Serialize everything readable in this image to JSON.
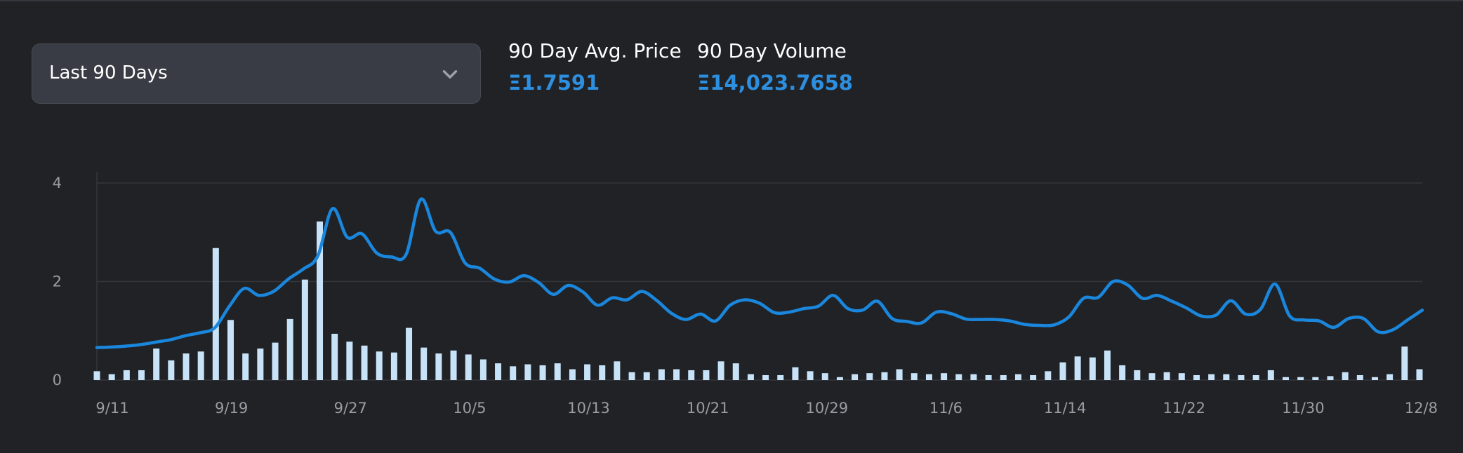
{
  "filter": {
    "selected": "Last 90 Days"
  },
  "stats": [
    {
      "label": "90 Day Avg. Price",
      "value": "Ξ1.7591"
    },
    {
      "label": "90 Day Volume",
      "value": "Ξ14,023.7658"
    }
  ],
  "colors": {
    "price_line": "#1a86dc",
    "volume_bar": "#c8e3f7",
    "accent_text": "#2d8fe0",
    "gridline": "#34363b"
  },
  "icons": {
    "dropdown": "chevron-down-icon"
  },
  "chart_data": {
    "type": "line",
    "x_tick_labels": [
      "9/11",
      "9/19",
      "9/27",
      "10/5",
      "10/13",
      "10/21",
      "10/29",
      "11/6",
      "11/14",
      "11/22",
      "11/30",
      "12/8"
    ],
    "y_tick_labels": [
      "0",
      "2",
      "4"
    ],
    "ylim": [
      0,
      4
    ],
    "grid": true,
    "series": [
      {
        "type": "line",
        "values": [
          0.66,
          0.67,
          0.69,
          0.72,
          0.77,
          0.82,
          0.9,
          0.96,
          1.06,
          1.5,
          1.86,
          1.72,
          1.8,
          2.05,
          2.25,
          2.52,
          3.48,
          2.9,
          2.97,
          2.58,
          2.5,
          2.55,
          3.67,
          3.02,
          3.0,
          2.38,
          2.27,
          2.05,
          1.99,
          2.12,
          1.98,
          1.74,
          1.92,
          1.79,
          1.52,
          1.67,
          1.63,
          1.8,
          1.62,
          1.36,
          1.23,
          1.34,
          1.2,
          1.52,
          1.63,
          1.56,
          1.37,
          1.38,
          1.45,
          1.5,
          1.72,
          1.45,
          1.42,
          1.6,
          1.25,
          1.19,
          1.16,
          1.38,
          1.35,
          1.24,
          1.23,
          1.23,
          1.2,
          1.13,
          1.11,
          1.12,
          1.28,
          1.66,
          1.68,
          2.0,
          1.93,
          1.66,
          1.72,
          1.6,
          1.46,
          1.3,
          1.32,
          1.61,
          1.34,
          1.43,
          1.95,
          1.3,
          1.22,
          1.2,
          1.07,
          1.25,
          1.25,
          0.98,
          1.02,
          1.22,
          1.42
        ]
      },
      {
        "type": "bar",
        "values": [
          0.18,
          0.12,
          0.2,
          0.2,
          0.64,
          0.4,
          0.54,
          0.58,
          2.68,
          1.22,
          0.54,
          0.64,
          0.76,
          1.24,
          2.04,
          3.22,
          0.94,
          0.78,
          0.7,
          0.58,
          0.56,
          1.06,
          0.66,
          0.54,
          0.6,
          0.52,
          0.42,
          0.34,
          0.28,
          0.32,
          0.3,
          0.34,
          0.22,
          0.32,
          0.3,
          0.38,
          0.16,
          0.16,
          0.22,
          0.22,
          0.2,
          0.2,
          0.38,
          0.34,
          0.12,
          0.1,
          0.1,
          0.26,
          0.18,
          0.14,
          0.06,
          0.12,
          0.14,
          0.16,
          0.22,
          0.14,
          0.12,
          0.14,
          0.12,
          0.12,
          0.1,
          0.1,
          0.12,
          0.1,
          0.18,
          0.36,
          0.48,
          0.46,
          0.6,
          0.3,
          0.2,
          0.14,
          0.16,
          0.14,
          0.1,
          0.12,
          0.12,
          0.1,
          0.1,
          0.2,
          0.06,
          0.06,
          0.06,
          0.08,
          0.16,
          0.1,
          0.06,
          0.12,
          0.68,
          0.22
        ]
      }
    ]
  }
}
